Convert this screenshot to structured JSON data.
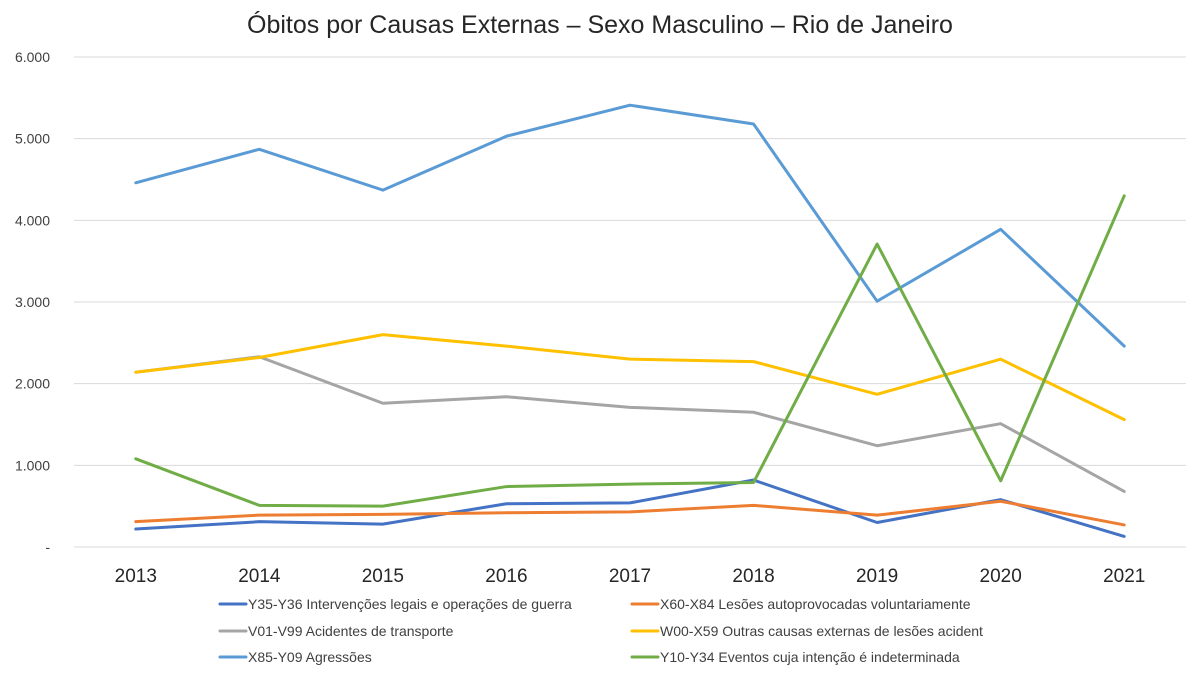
{
  "chart_data": {
    "type": "line",
    "title": "Óbitos por Causas Externas – Sexo Masculino – Rio de Janeiro",
    "xlabel": "",
    "ylabel": "",
    "categories": [
      "2013",
      "2014",
      "2015",
      "2016",
      "2017",
      "2018",
      "2019",
      "2020",
      "2021"
    ],
    "ylim": [
      0,
      6000
    ],
    "yticks": [
      {
        "value": 0,
        "label": "-"
      },
      {
        "value": 1000,
        "label": "1.000"
      },
      {
        "value": 2000,
        "label": "2.000"
      },
      {
        "value": 3000,
        "label": "3.000"
      },
      {
        "value": 4000,
        "label": "4.000"
      },
      {
        "value": 5000,
        "label": "5.000"
      },
      {
        "value": 6000,
        "label": "6.000"
      }
    ],
    "grid": true,
    "legend_position": "bottom",
    "series": [
      {
        "name": "Y35-Y36 Intervenções legais e operações de guerra",
        "color": "#4472c4",
        "values": [
          220,
          310,
          280,
          530,
          540,
          820,
          300,
          580,
          130
        ]
      },
      {
        "name": "X60-X84 Lesões autoprovocadas voluntariamente",
        "color": "#ed7d31",
        "values": [
          310,
          390,
          400,
          420,
          430,
          510,
          390,
          560,
          270
        ]
      },
      {
        "name": "V01-V99 Acidentes de transporte",
        "color": "#a5a5a5",
        "values": [
          2140,
          2330,
          1760,
          1840,
          1710,
          1650,
          1240,
          1510,
          680
        ]
      },
      {
        "name": "W00-X59 Outras causas externas de lesões acident",
        "color": "#ffc000",
        "values": [
          2140,
          2320,
          2600,
          2460,
          2300,
          2270,
          1870,
          2300,
          1560
        ]
      },
      {
        "name": "X85-Y09 Agressões",
        "color": "#5b9bd5",
        "values": [
          4460,
          4870,
          4370,
          5030,
          5410,
          5180,
          3010,
          3890,
          2460
        ]
      },
      {
        "name": "Y10-Y34 Eventos cuja intenção é indeterminada",
        "color": "#70ad47",
        "values": [
          1080,
          510,
          500,
          740,
          770,
          790,
          3710,
          810,
          4300
        ]
      }
    ]
  }
}
